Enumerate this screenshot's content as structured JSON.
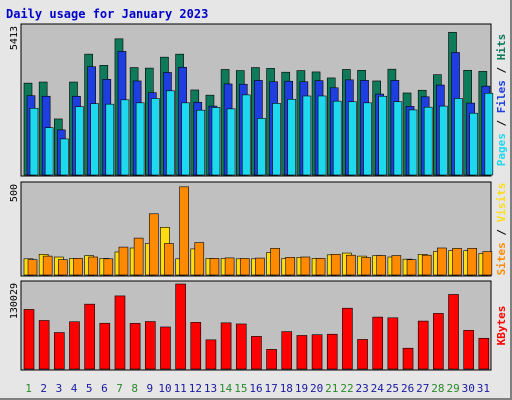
{
  "title": "Daily usage for January 2023",
  "colors": {
    "hits": "#0e7a5a",
    "files": "#1f3ee0",
    "pages": "#1ed9ee",
    "visits": "#ffdd11",
    "sites": "#ff8a00",
    "kbytes": "#ff0000",
    "panel_bg": "#c0c0c0",
    "weekend_day": "#2a8a2a",
    "weekday_day": "#1a1aa0"
  },
  "chart_data": [
    {
      "type": "bar",
      "title": "Daily usage for January 2023",
      "panel": "hits-files-pages",
      "max_label": "5413",
      "legend": [
        "Pages",
        "Files",
        "Hits"
      ],
      "ylim": [
        0,
        5413
      ],
      "categories": [
        "1",
        "2",
        "3",
        "4",
        "5",
        "6",
        "7",
        "8",
        "9",
        "10",
        "11",
        "12",
        "13",
        "14",
        "15",
        "16",
        "17",
        "18",
        "19",
        "20",
        "21",
        "22",
        "23",
        "24",
        "25",
        "26",
        "27",
        "28",
        "29",
        "30",
        "31"
      ],
      "weekend": [
        true,
        false,
        false,
        false,
        false,
        false,
        true,
        true,
        false,
        false,
        false,
        false,
        false,
        true,
        true,
        false,
        false,
        false,
        false,
        false,
        true,
        true,
        false,
        false,
        false,
        false,
        false,
        true,
        true,
        false,
        false
      ],
      "series": [
        {
          "name": "Hits",
          "values": [
            3360,
            3400,
            2050,
            3400,
            4420,
            4010,
            4980,
            3930,
            3910,
            4310,
            4420,
            3110,
            2920,
            3860,
            3820,
            3930,
            3900,
            3760,
            3820,
            3770,
            3550,
            3860,
            3830,
            3440,
            3870,
            3000,
            3100,
            3670,
            5220,
            3830,
            3790
          ]
        },
        {
          "name": "Files",
          "values": [
            2900,
            2880,
            1650,
            2880,
            3960,
            3500,
            4520,
            3440,
            3010,
            3750,
            3940,
            2660,
            2520,
            3330,
            3320,
            3460,
            3410,
            3430,
            3410,
            3450,
            3190,
            3480,
            3460,
            2960,
            3460,
            2510,
            2860,
            3290,
            4480,
            2630,
            3250
          ]
        },
        {
          "name": "Pages",
          "values": [
            2440,
            1730,
            1320,
            2500,
            2610,
            2590,
            2750,
            2640,
            2800,
            3080,
            2640,
            2370,
            2470,
            2420,
            2930,
            2070,
            2620,
            2770,
            2890,
            2890,
            2700,
            2680,
            2640,
            2880,
            2680,
            2380,
            2480,
            2520,
            2800,
            2260,
            2990
          ]
        }
      ]
    },
    {
      "type": "bar",
      "panel": "visits-sites",
      "max_label": "500",
      "legend": [
        "Sites",
        "Visits"
      ],
      "ylim": [
        0,
        500
      ],
      "categories": [
        "1",
        "2",
        "3",
        "4",
        "5",
        "6",
        "7",
        "8",
        "9",
        "10",
        "11",
        "12",
        "13",
        "14",
        "15",
        "16",
        "17",
        "18",
        "19",
        "20",
        "21",
        "22",
        "23",
        "24",
        "25",
        "26",
        "27",
        "28",
        "29",
        "30",
        "31"
      ],
      "series": [
        {
          "name": "Visits",
          "values": [
            90,
            115,
            100,
            92,
            108,
            92,
            128,
            150,
            175,
            265,
            90,
            145,
            92,
            92,
            90,
            90,
            125,
            92,
            98,
            92,
            112,
            122,
            105,
            108,
            100,
            88,
            115,
            130,
            135,
            135,
            120
          ]
        },
        {
          "name": "Sites",
          "values": [
            85,
            105,
            85,
            92,
            100,
            90,
            155,
            205,
            340,
            175,
            490,
            180,
            92,
            95,
            92,
            94,
            148,
            98,
            100,
            92,
            115,
            110,
            97,
            108,
            108,
            85,
            110,
            150,
            148,
            148,
            130
          ]
        }
      ]
    },
    {
      "type": "bar",
      "panel": "kbytes",
      "max_label": "130029",
      "legend": [
        "KBytes"
      ],
      "ylim": [
        0,
        130029
      ],
      "categories": [
        "1",
        "2",
        "3",
        "4",
        "5",
        "6",
        "7",
        "8",
        "9",
        "10",
        "11",
        "12",
        "13",
        "14",
        "15",
        "16",
        "17",
        "18",
        "19",
        "20",
        "21",
        "22",
        "23",
        "24",
        "25",
        "26",
        "27",
        "28",
        "29",
        "30",
        "31"
      ],
      "series": [
        {
          "name": "KBytes",
          "values": [
            91100,
            74200,
            55800,
            72300,
            99200,
            70000,
            111800,
            69800,
            72600,
            64300,
            130000,
            71300,
            44600,
            70600,
            68900,
            49900,
            30000,
            57200,
            51300,
            52500,
            53200,
            93000,
            45200,
            79400,
            78300,
            31800,
            73300,
            85000,
            114000,
            59100,
            47000
          ]
        }
      ]
    }
  ]
}
